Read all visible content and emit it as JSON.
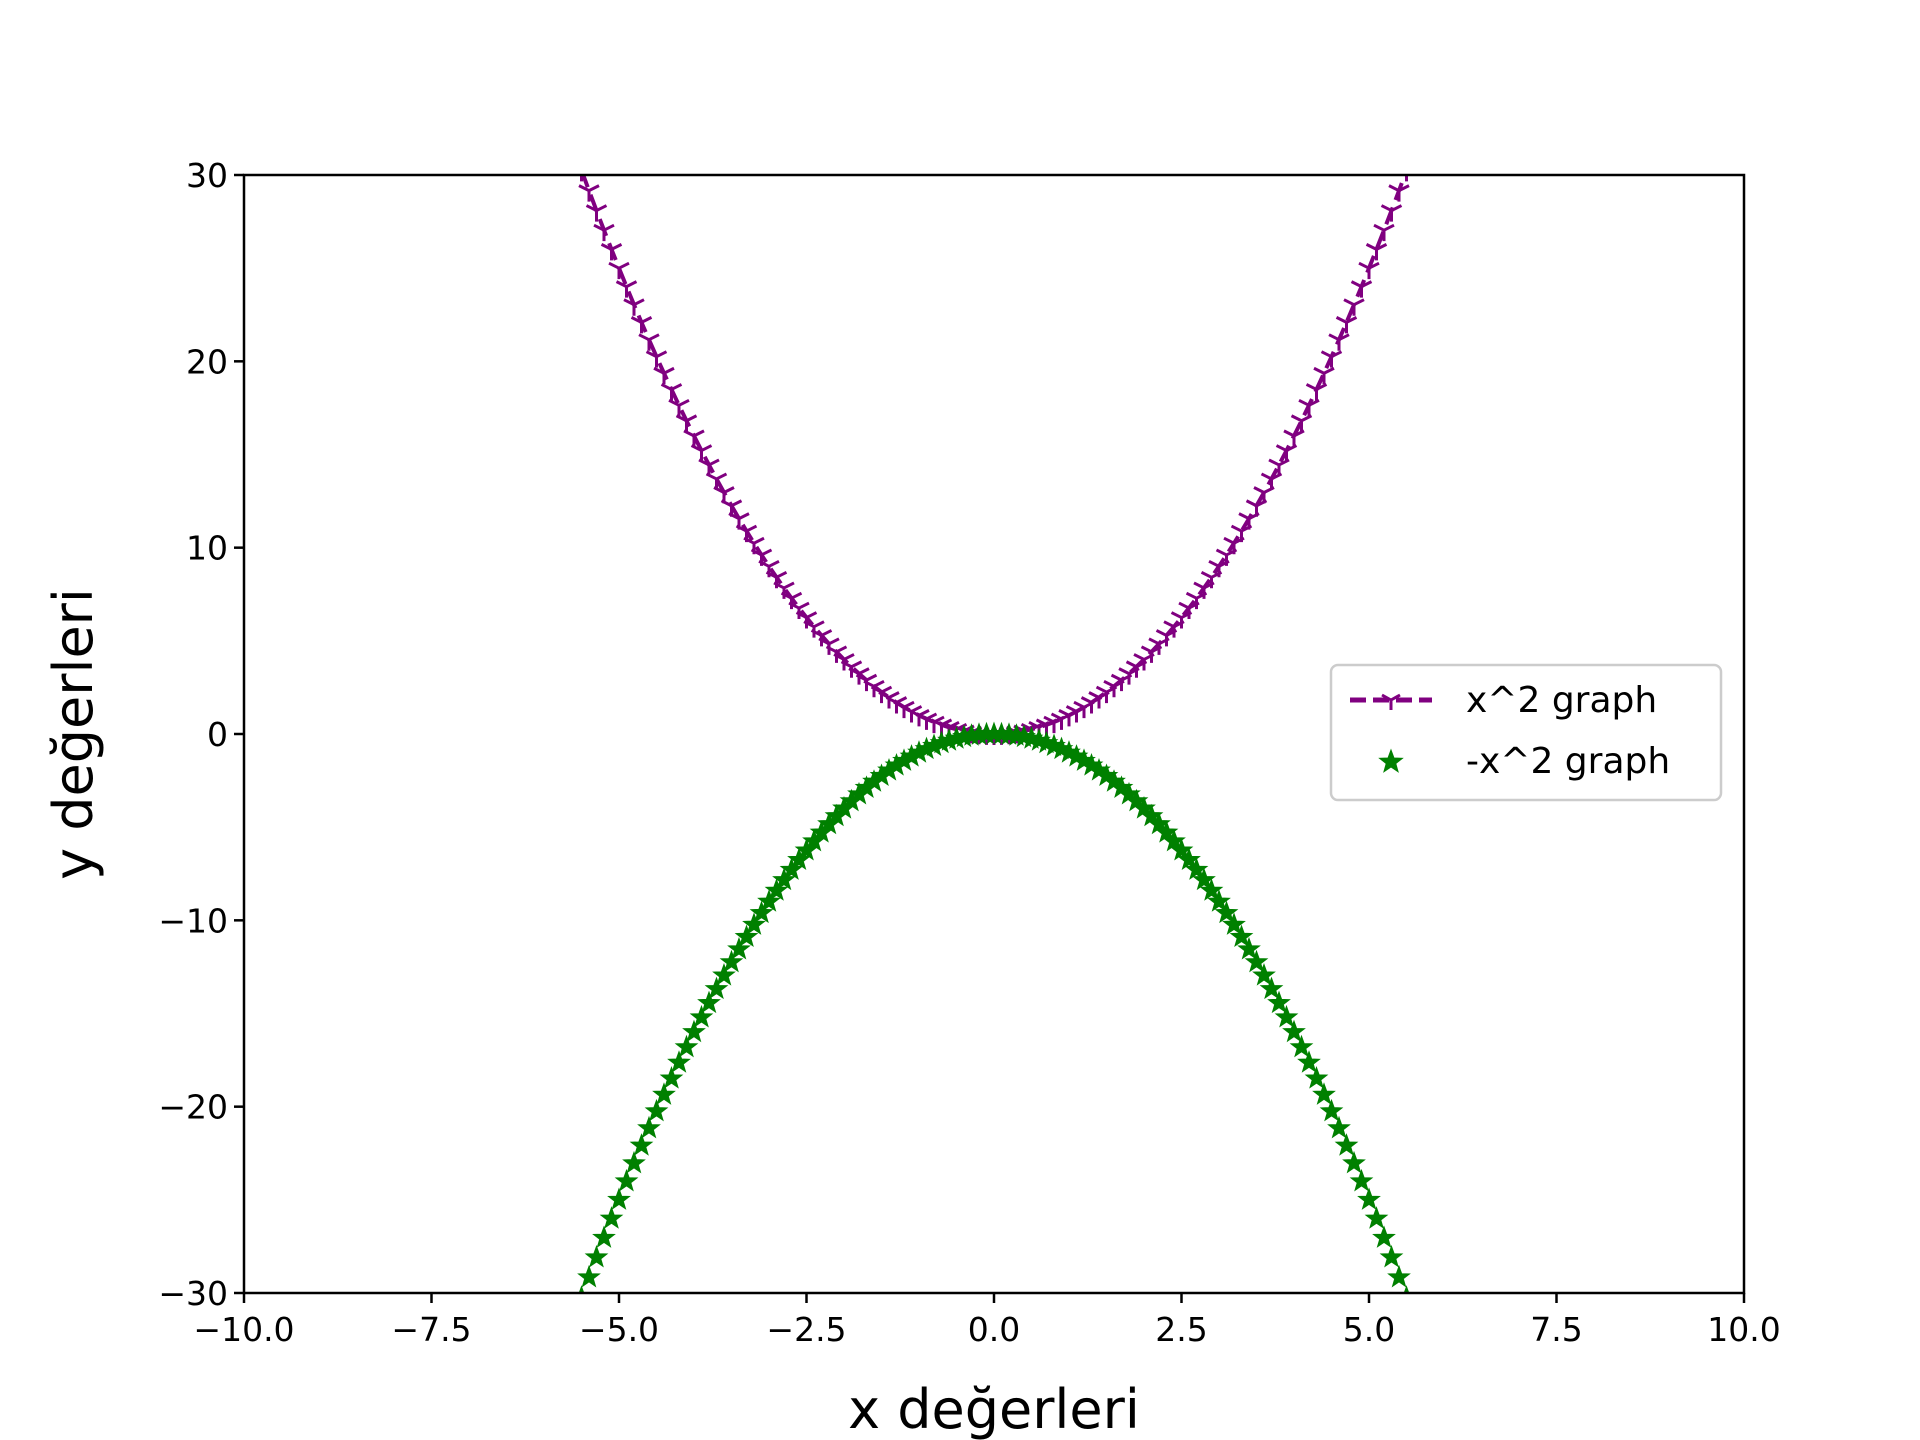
{
  "chart_data": {
    "type": "line",
    "title": "",
    "xlabel": "x değerleri",
    "ylabel": "y değerleri",
    "xlim": [
      -10,
      10
    ],
    "ylim": [
      -30,
      30
    ],
    "x_ticks": [
      -10.0,
      -7.5,
      -5.0,
      -2.5,
      0.0,
      2.5,
      5.0,
      7.5,
      10.0
    ],
    "x_tick_labels": [
      "−10.0",
      "−7.5",
      "−5.0",
      "−2.5",
      "0.0",
      "2.5",
      "5.0",
      "7.5",
      "10.0"
    ],
    "y_ticks": [
      -30,
      -20,
      -10,
      0,
      10,
      20,
      30
    ],
    "y_tick_labels": [
      "−30",
      "−20",
      "−10",
      "0",
      "10",
      "20",
      "30"
    ],
    "grid": false,
    "legend_position": "center-right",
    "x_range": [
      -5.5,
      5.5
    ],
    "x_step": 0.1,
    "series": [
      {
        "name": "x^2 graph",
        "expression": "x^2",
        "color": "#800080",
        "linestyle": "dashed",
        "marker": "1"
      },
      {
        "name": "-x^2 graph",
        "expression": "-x^2",
        "color": "#008000",
        "linestyle": "none",
        "marker": "*"
      }
    ]
  }
}
